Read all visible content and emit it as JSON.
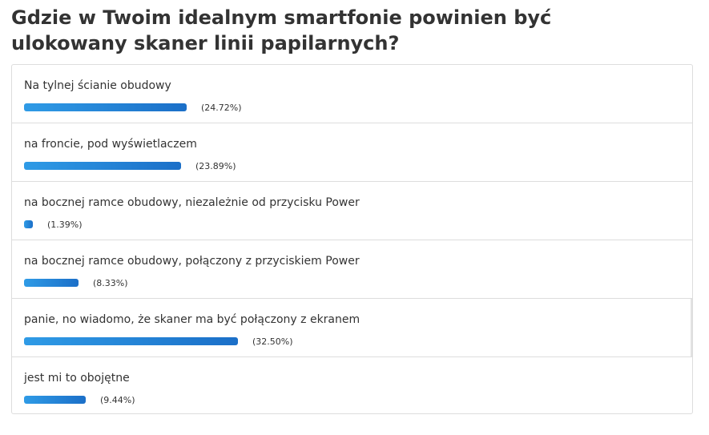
{
  "poll": {
    "title_line1": "Gdzie w Twoim idealnym smartfonie powinien być",
    "title_line2": "ulokowany skaner linii papilarnych?",
    "bar_color_start": "#2f9be6",
    "bar_color_end": "#1b6fc8",
    "options": [
      {
        "label": "Na tylnej ścianie obudowy",
        "percent_text": "(24.72%)",
        "percent": 24.72
      },
      {
        "label": "na froncie, pod wyświetlaczem",
        "percent_text": "(23.89%)",
        "percent": 23.89
      },
      {
        "label": "na bocznej ramce obudowy, niezależnie od przycisku Power",
        "percent_text": "(1.39%)",
        "percent": 1.39
      },
      {
        "label": "na bocznej ramce obudowy, połączony z przyciskiem Power",
        "percent_text": "(8.33%)",
        "percent": 8.33
      },
      {
        "label": "panie, no wiadomo, że skaner ma być połączony z ekranem",
        "percent_text": "(32.50%)",
        "percent": 32.5
      },
      {
        "label": "jest mi to obojętne",
        "percent_text": "(9.44%)",
        "percent": 9.44
      }
    ]
  }
}
